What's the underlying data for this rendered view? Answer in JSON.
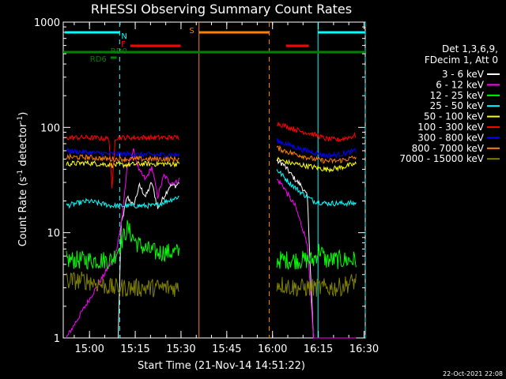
{
  "chart_data": {
    "type": "line",
    "title": "RHESSI Observing Summary Count Rates",
    "xlabel": "Start Time (21-Nov-14 14:51:22)",
    "ylabel_main": "Count Rate (s",
    "ylabel_sup1": "-1",
    "ylabel_mid": " detector",
    "ylabel_sup2": "-1",
    "ylabel_end": ")",
    "x_unit": "minutes since 14:51:22",
    "xlim": [
      0,
      99
    ],
    "ylim": [
      1,
      1000
    ],
    "yscale": "log",
    "x_ticks": [
      {
        "label": "15:00",
        "value": 8.6
      },
      {
        "label": "15:15",
        "value": 23.6
      },
      {
        "label": "15:30",
        "value": 38.6
      },
      {
        "label": "15:45",
        "value": 53.6
      },
      {
        "label": "16:00",
        "value": 68.6
      },
      {
        "label": "16:15",
        "value": 83.6
      },
      {
        "label": "16:30",
        "value": 98.6
      }
    ],
    "y_ticks": [
      {
        "label": "1",
        "value": 1
      },
      {
        "label": "10",
        "value": 10
      },
      {
        "label": "100",
        "value": 100
      },
      {
        "label": "1000",
        "value": 1000
      }
    ],
    "legend": {
      "header1": "Det 1,3,6,9,",
      "header2": "FDecim 1, Att 0",
      "position": "right"
    },
    "series": [
      {
        "name": "3 - 6 keV",
        "color": "#ffffff",
        "seg1": [
          [
            1,
            1
          ],
          [
            16,
            1
          ],
          [
            18,
            1
          ],
          [
            19,
            12
          ],
          [
            21,
            22
          ],
          [
            23,
            18
          ],
          [
            25,
            28
          ],
          [
            27,
            22
          ],
          [
            29,
            30
          ],
          [
            31,
            17
          ],
          [
            33,
            22
          ],
          [
            35,
            28
          ],
          [
            37,
            28
          ],
          [
            38,
            30
          ]
        ],
        "seg2": [
          [
            70,
            48
          ],
          [
            72,
            45
          ],
          [
            74,
            38
          ],
          [
            76,
            32
          ],
          [
            78,
            28
          ],
          [
            80,
            22
          ],
          [
            82,
            1
          ],
          [
            86,
            1
          ],
          [
            90,
            1
          ],
          [
            96,
            1
          ]
        ]
      },
      {
        "name": "6 - 12 keV",
        "color": "#ff00ff",
        "seg1": [
          [
            1,
            1
          ],
          [
            17,
            6
          ],
          [
            19,
            12
          ],
          [
            21,
            42
          ],
          [
            23,
            60
          ],
          [
            25,
            38
          ],
          [
            27,
            32
          ],
          [
            29,
            42
          ],
          [
            31,
            22
          ],
          [
            33,
            35
          ],
          [
            35,
            30
          ],
          [
            37,
            30
          ],
          [
            38,
            32
          ]
        ],
        "seg2": [
          [
            70,
            32
          ],
          [
            72,
            28
          ],
          [
            74,
            22
          ],
          [
            76,
            18
          ],
          [
            78,
            12
          ],
          [
            80,
            8
          ],
          [
            82,
            1
          ],
          [
            86,
            1
          ],
          [
            90,
            1
          ],
          [
            96,
            1
          ]
        ]
      },
      {
        "name": "12 - 25 keV",
        "color": "#00ff00",
        "seg1": [
          [
            1,
            5.5
          ],
          [
            8,
            5.5
          ],
          [
            16,
            5.5
          ],
          [
            18,
            7
          ],
          [
            21,
            11
          ],
          [
            24,
            8
          ],
          [
            27,
            7
          ],
          [
            30,
            6.5
          ],
          [
            34,
            6.5
          ],
          [
            38,
            6.5
          ]
        ],
        "seg2": [
          [
            70,
            5.5
          ],
          [
            76,
            5.5
          ],
          [
            82,
            5.5
          ],
          [
            84,
            7
          ],
          [
            86,
            5.5
          ],
          [
            90,
            5.5
          ],
          [
            96,
            5.5
          ]
        ]
      },
      {
        "name": "25 - 50 keV",
        "color": "#00ffff",
        "seg1": [
          [
            1,
            18
          ],
          [
            8,
            20
          ],
          [
            16,
            18
          ],
          [
            20,
            18
          ],
          [
            25,
            18
          ],
          [
            30,
            18
          ],
          [
            34,
            20
          ],
          [
            38,
            22
          ]
        ],
        "seg2": [
          [
            70,
            40
          ],
          [
            74,
            30
          ],
          [
            78,
            24
          ],
          [
            82,
            20
          ],
          [
            86,
            19
          ],
          [
            90,
            19
          ],
          [
            96,
            19
          ]
        ]
      },
      {
        "name": "50 - 100 keV",
        "color": "#ffff00",
        "seg1": [
          [
            1,
            45
          ],
          [
            8,
            46
          ],
          [
            16,
            44
          ],
          [
            20,
            44
          ],
          [
            25,
            45
          ],
          [
            30,
            45
          ],
          [
            34,
            45
          ],
          [
            38,
            45
          ]
        ],
        "seg2": [
          [
            70,
            50
          ],
          [
            74,
            46
          ],
          [
            78,
            44
          ],
          [
            82,
            42
          ],
          [
            86,
            40
          ],
          [
            90,
            41
          ],
          [
            96,
            45
          ]
        ]
      },
      {
        "name": "100 - 300 keV",
        "color": "#ff0000",
        "seg1": [
          [
            1,
            80
          ],
          [
            8,
            80
          ],
          [
            15,
            78
          ],
          [
            16,
            25
          ],
          [
            17,
            80
          ],
          [
            20,
            80
          ],
          [
            25,
            80
          ],
          [
            30,
            80
          ],
          [
            34,
            80
          ],
          [
            38,
            80
          ]
        ],
        "seg2": [
          [
            70,
            110
          ],
          [
            74,
            100
          ],
          [
            78,
            92
          ],
          [
            82,
            86
          ],
          [
            86,
            78
          ],
          [
            90,
            76
          ],
          [
            96,
            84
          ]
        ]
      },
      {
        "name": "300 - 800 keV",
        "color": "#0000ff",
        "seg1": [
          [
            1,
            60
          ],
          [
            8,
            58
          ],
          [
            15,
            56
          ],
          [
            20,
            56
          ],
          [
            25,
            55
          ],
          [
            30,
            55
          ],
          [
            34,
            55
          ],
          [
            38,
            55
          ]
        ],
        "seg2": [
          [
            70,
            75
          ],
          [
            74,
            68
          ],
          [
            78,
            62
          ],
          [
            82,
            58
          ],
          [
            86,
            54
          ],
          [
            90,
            55
          ],
          [
            96,
            60
          ]
        ]
      },
      {
        "name": "800 - 7000 keV",
        "color": "#ff8000",
        "seg1": [
          [
            1,
            52
          ],
          [
            8,
            52
          ],
          [
            15,
            50
          ],
          [
            20,
            50
          ],
          [
            25,
            50
          ],
          [
            30,
            50
          ],
          [
            34,
            50
          ],
          [
            38,
            50
          ]
        ],
        "seg2": [
          [
            70,
            64
          ],
          [
            74,
            58
          ],
          [
            78,
            54
          ],
          [
            82,
            50
          ],
          [
            86,
            48
          ],
          [
            90,
            48
          ],
          [
            96,
            52
          ]
        ]
      },
      {
        "name": "7000 - 15000 keV",
        "color": "#808000",
        "seg1": [
          [
            1,
            3.5
          ],
          [
            8,
            3.5
          ],
          [
            16,
            3
          ],
          [
            20,
            3
          ],
          [
            25,
            3
          ],
          [
            30,
            3
          ],
          [
            34,
            3
          ],
          [
            38,
            3
          ]
        ],
        "seg2": [
          [
            70,
            3.3
          ],
          [
            76,
            3
          ],
          [
            82,
            3
          ],
          [
            86,
            3
          ],
          [
            90,
            3
          ],
          [
            96,
            3.5
          ]
        ]
      }
    ],
    "bars": [
      {
        "label": "N",
        "color": "#00ffff",
        "x1": 0.5,
        "x2": 18.5,
        "level": "top"
      },
      {
        "label": "",
        "color": "#00ffff",
        "x1": 83.5,
        "x2": 99,
        "level": "top"
      },
      {
        "label": "S",
        "color": "#ff8000",
        "x1": 44.5,
        "x2": 67.5,
        "level": "top"
      },
      {
        "label": "F",
        "color": "#ff0000",
        "x1": 22,
        "x2": 38.5,
        "level": "mid"
      },
      {
        "label": "",
        "color": "#ff0000",
        "x1": 73,
        "x2": 80.5,
        "level": "mid"
      },
      {
        "label": "RD0",
        "color": "#008000",
        "x1": 0,
        "x2": 99,
        "level": "low"
      },
      {
        "label": "RD6",
        "color": "#008000",
        "x1": 15.5,
        "x2": 17.5,
        "level": "lowest"
      }
    ],
    "vlines": [
      {
        "x": 18.5,
        "color": "#00ffff",
        "style": "dashed"
      },
      {
        "x": 44.5,
        "color": "#ff8000",
        "style": "solid"
      },
      {
        "x": 67.5,
        "color": "#ff8000",
        "style": "dashed"
      },
      {
        "x": 83.5,
        "color": "#00ffff",
        "style": "solid"
      },
      {
        "x": 99,
        "color": "#00ffff",
        "style": "dashed"
      }
    ],
    "footer_date": "22-Oct-2021 22:08"
  }
}
